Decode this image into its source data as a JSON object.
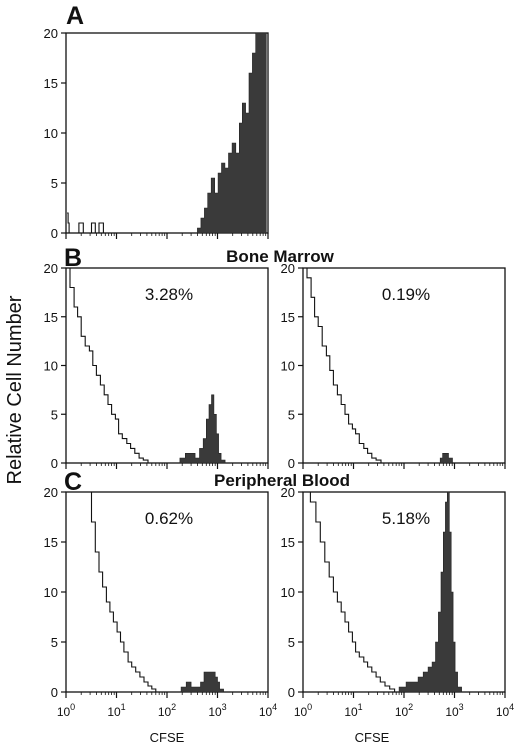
{
  "figure": {
    "y_axis_title": "Relative Cell Number",
    "x_axis_title": "CFSE",
    "sections": [
      {
        "letter": "A",
        "title": ""
      },
      {
        "letter": "B",
        "title": "Bone Marrow"
      },
      {
        "letter": "C",
        "title": "Peripheral Blood"
      }
    ]
  },
  "chart_data": [
    {
      "id": "A",
      "type": "area",
      "xscale": "log",
      "xlim": [
        1,
        10000
      ],
      "ylim": [
        0,
        20
      ],
      "yticks": [
        0,
        5,
        10,
        15,
        20
      ],
      "show_x_ticklabels": false,
      "label": "",
      "filled": {
        "x": [
          400,
          470,
          550,
          640,
          750,
          880,
          1030,
          1200,
          1400,
          1650,
          1950,
          2300,
          2700,
          3100,
          3600,
          4200,
          4900,
          5700,
          6600,
          7700
        ],
        "y": [
          0.5,
          1.5,
          2.5,
          4,
          5.5,
          4,
          6,
          7,
          6.5,
          8,
          9,
          8,
          11,
          13,
          12,
          16,
          18,
          20,
          20,
          20
        ]
      },
      "outline": {
        "x": [
          1.05,
          1.1,
          1.15,
          1.3,
          1.5,
          1.8,
          2.2,
          2.6,
          3.2,
          3.8,
          4.5,
          5.5,
          7
        ],
        "y": [
          2,
          1,
          0,
          0,
          0,
          1,
          0,
          0,
          1,
          0,
          1,
          0,
          0
        ]
      }
    },
    {
      "id": "B-left",
      "type": "area",
      "xscale": "log",
      "xlim": [
        1,
        10000
      ],
      "ylim": [
        0,
        20
      ],
      "yticks": [
        0,
        5,
        10,
        15,
        20
      ],
      "show_x_ticklabels": false,
      "label": "3.28%",
      "outline": {
        "x": [
          1,
          1.2,
          1.45,
          1.7,
          2.0,
          2.4,
          2.9,
          3.4,
          4.0,
          4.8,
          5.7,
          6.8,
          8.0,
          9.5,
          11,
          13,
          16,
          19,
          23,
          28,
          34,
          42
        ],
        "y": [
          20,
          18,
          16,
          15,
          13,
          12,
          11.5,
          10,
          9,
          8,
          7,
          6,
          5,
          4.5,
          3,
          2.5,
          2,
          1.5,
          1,
          0.5,
          0.3,
          0
        ]
      },
      "filled": {
        "x": [
          180,
          230,
          290,
          360,
          440,
          520,
          600,
          680,
          760,
          850,
          950,
          1050,
          1180
        ],
        "y": [
          0.5,
          1,
          1,
          0.5,
          1.5,
          2.5,
          4.5,
          6,
          7,
          5,
          3,
          1,
          0.3
        ]
      }
    },
    {
      "id": "B-right",
      "type": "area",
      "xscale": "log",
      "xlim": [
        1,
        10000
      ],
      "ylim": [
        0,
        20
      ],
      "yticks": [
        0,
        5,
        10,
        15,
        20
      ],
      "show_x_ticklabels": false,
      "label": "0.19%",
      "outline": {
        "x": [
          1,
          1.2,
          1.45,
          1.7,
          2.0,
          2.4,
          2.9,
          3.4,
          4.0,
          4.8,
          5.7,
          6.8,
          8.0,
          9.5,
          11,
          13,
          16,
          19,
          23,
          28,
          35
        ],
        "y": [
          20,
          19,
          17,
          15,
          14,
          12,
          11,
          9.5,
          8,
          7,
          6,
          5,
          4,
          3.5,
          3,
          2,
          1.5,
          1,
          0.5,
          0.3,
          0
        ]
      },
      "filled": {
        "x": [
          520,
          580,
          640,
          700,
          760
        ],
        "y": [
          0.5,
          1,
          1,
          1,
          0.5
        ]
      }
    },
    {
      "id": "C-left",
      "type": "area",
      "xscale": "log",
      "xlim": [
        1,
        10000
      ],
      "ylim": [
        0,
        20
      ],
      "yticks": [
        0,
        5,
        10,
        15,
        20
      ],
      "show_x_ticklabels": true,
      "label": "0.62%",
      "outline": {
        "x": [
          1,
          1.5,
          2.0,
          2.6,
          3.2,
          3.8,
          4.5,
          5.3,
          6.3,
          7.4,
          8.7,
          10.3,
          12,
          14,
          17,
          20,
          24,
          29,
          35,
          42,
          50,
          60
        ],
        "y": [
          20,
          20,
          20,
          20,
          17,
          14,
          12,
          10.5,
          9,
          8,
          7,
          6,
          5,
          4,
          3,
          2.5,
          2,
          1.5,
          1,
          0.6,
          0.3,
          0
        ]
      },
      "filled": {
        "x": [
          190,
          240,
          300,
          380,
          460,
          540,
          620,
          700,
          800,
          900,
          1000,
          1100
        ],
        "y": [
          0.5,
          1,
          0.5,
          0.5,
          1,
          2,
          2,
          2,
          2,
          1.5,
          1,
          0.3
        ]
      }
    },
    {
      "id": "C-right",
      "type": "area",
      "xscale": "log",
      "xlim": [
        1,
        10000
      ],
      "ylim": [
        0,
        20
      ],
      "yticks": [
        0,
        5,
        10,
        15,
        20
      ],
      "show_x_ticklabels": true,
      "label": "5.18%",
      "outline": {
        "x": [
          1,
          1.4,
          1.8,
          2.2,
          2.7,
          3.3,
          4.0,
          4.8,
          5.7,
          6.8,
          8.0,
          9.5,
          11,
          13,
          16,
          19,
          23,
          28,
          34,
          42,
          52,
          65
        ],
        "y": [
          20,
          19,
          17,
          15,
          13,
          11.5,
          10,
          9,
          8,
          7,
          6,
          5,
          4,
          3.5,
          3,
          2.5,
          2,
          1.5,
          1,
          0.6,
          0.3,
          0
        ]
      },
      "filled": {
        "x": [
          80,
          110,
          150,
          190,
          240,
          300,
          360,
          420,
          480,
          540,
          600,
          660,
          720,
          790,
          860,
          940,
          1030,
          1150
        ],
        "y": [
          0.5,
          1,
          1,
          1.5,
          2,
          2.5,
          3,
          5,
          8,
          12,
          16,
          19,
          20,
          16,
          10,
          5,
          2,
          0.5
        ]
      }
    }
  ]
}
